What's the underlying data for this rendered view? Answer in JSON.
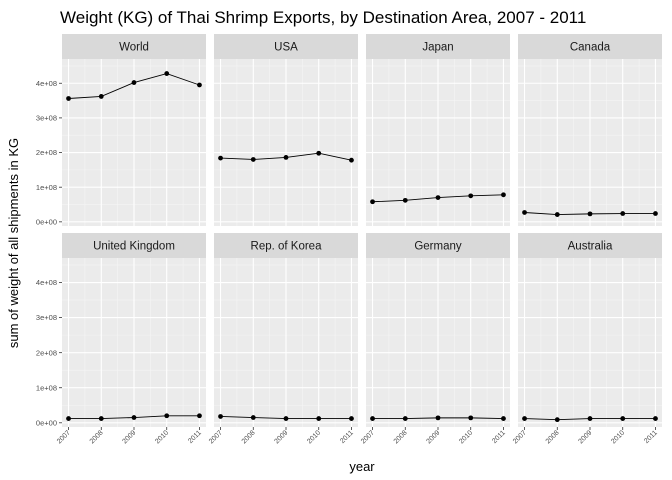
{
  "chart_data": {
    "type": "line",
    "title": "Weight (KG) of Thai Shrimp Exports, by Destination Area, 2007 - 2011",
    "xlabel": "year",
    "ylabel": "sum of weight of all shipments in KG",
    "x": [
      2007,
      2008,
      2009,
      2010,
      2011
    ],
    "x_tick_labels": [
      "2007",
      "2008",
      "2009",
      "2010",
      "2011"
    ],
    "y_ticks": [
      0,
      100000000,
      200000000,
      300000000,
      400000000
    ],
    "y_tick_labels": [
      "0e+00",
      "1e+08",
      "2e+08",
      "3e+08",
      "4e+08"
    ],
    "ylim": [
      -12000000,
      470000000
    ],
    "xlim": [
      2006.8,
      2011.2
    ],
    "grid": true,
    "facets": [
      {
        "name": "World",
        "values": [
          356000000,
          362000000,
          402000000,
          428000000,
          395000000
        ]
      },
      {
        "name": "USA",
        "values": [
          184000000,
          180000000,
          186000000,
          198000000,
          178000000
        ]
      },
      {
        "name": "Japan",
        "values": [
          58000000,
          62000000,
          70000000,
          75000000,
          78000000
        ]
      },
      {
        "name": "Canada",
        "values": [
          27000000,
          21000000,
          23000000,
          24000000,
          24000000
        ]
      },
      {
        "name": "United Kingdom",
        "values": [
          12000000,
          12000000,
          15000000,
          20000000,
          20000000
        ]
      },
      {
        "name": "Rep. of Korea",
        "values": [
          18000000,
          15000000,
          12000000,
          12000000,
          12000000
        ]
      },
      {
        "name": "Germany",
        "values": [
          12000000,
          12000000,
          14000000,
          14000000,
          12000000
        ]
      },
      {
        "name": "Australia",
        "values": [
          12000000,
          9000000,
          12000000,
          12000000,
          12000000
        ]
      }
    ]
  }
}
